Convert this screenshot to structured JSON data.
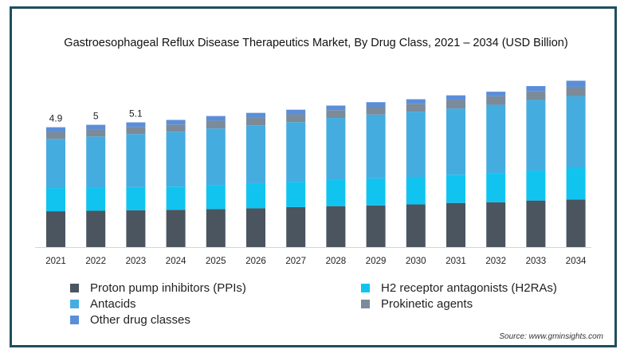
{
  "chart_data": {
    "type": "bar",
    "stacked": true,
    "title": "Gastroesophageal Reflux Disease Therapeutics Market, By Drug Class, 2021 – 2034 (USD Billion)",
    "xlabel": "",
    "ylabel": "",
    "categories": [
      "2021",
      "2022",
      "2023",
      "2024",
      "2025",
      "2026",
      "2027",
      "2028",
      "2029",
      "2030",
      "2031",
      "2032",
      "2033",
      "2034"
    ],
    "totals_labels": [
      "4.9",
      "5",
      "5.1"
    ],
    "series": [
      {
        "name": "Proton pump inhibitors (PPIs)",
        "color": "#4a5560",
        "values": [
          1.47,
          1.49,
          1.51,
          1.53,
          1.56,
          1.59,
          1.64,
          1.68,
          1.71,
          1.75,
          1.81,
          1.84,
          1.91,
          1.95
        ]
      },
      {
        "name": "H2 receptor antagonists (H2RAs)",
        "color": "#11c4f0",
        "values": [
          0.95,
          0.95,
          0.95,
          0.95,
          0.98,
          1.03,
          1.03,
          1.07,
          1.11,
          1.13,
          1.16,
          1.19,
          1.23,
          1.29
        ]
      },
      {
        "name": "Antacids",
        "color": "#45ace0",
        "values": [
          2.02,
          2.1,
          2.18,
          2.26,
          2.33,
          2.38,
          2.46,
          2.55,
          2.62,
          2.68,
          2.72,
          2.81,
          2.9,
          2.96
        ]
      },
      {
        "name": "Prokinetic agents",
        "color": "#7b8b99",
        "values": [
          0.29,
          0.29,
          0.29,
          0.29,
          0.32,
          0.32,
          0.32,
          0.32,
          0.32,
          0.32,
          0.35,
          0.35,
          0.35,
          0.38
        ]
      },
      {
        "name": "Other drug classes",
        "color": "#5a8ed8",
        "values": [
          0.19,
          0.19,
          0.19,
          0.19,
          0.19,
          0.19,
          0.19,
          0.19,
          0.19,
          0.19,
          0.19,
          0.19,
          0.22,
          0.25
        ]
      }
    ],
    "ylim": [
      0,
      7.2
    ],
    "grid": false,
    "legend_position": "bottom"
  },
  "legend": [
    {
      "label": "Proton pump inhibitors (PPIs)",
      "color": "#4a5560"
    },
    {
      "label": "H2 receptor antagonists (H2RAs)",
      "color": "#11c4f0"
    },
    {
      "label": "Antacids",
      "color": "#45ace0"
    },
    {
      "label": "Prokinetic agents",
      "color": "#7b8b99"
    },
    {
      "label": "Other drug classes",
      "color": "#5a8ed8"
    }
  ],
  "source": "Source: www.gminsights.com"
}
